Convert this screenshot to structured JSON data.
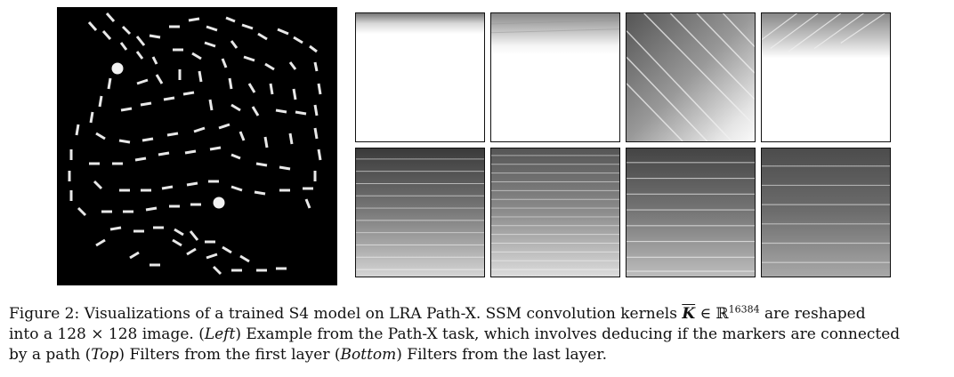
{
  "figure": {
    "left_panel": {
      "description_name": "path-x-example"
    },
    "kernel_grid": {
      "rows": 2,
      "cols": 4
    }
  },
  "caption": {
    "line1_pre": "Figure 2: Visualizations of a trained S4 model on LRA Path-X. SSM convolution kernels ",
    "kernel_symbol": "K",
    "in_symbol": " ∈ ℝ",
    "dim": "16384",
    "line1_post": " are reshaped",
    "line2_pre": "into a 128 × 128 image. (",
    "left_label": "Left",
    "line2_post": ") Example from the Path-X task, which involves deducing if the markers are connected",
    "line3_pre": "by a path (",
    "top_label": "Top",
    "line3_mid": ") Filters from the first layer (",
    "bottom_label": "Bottom",
    "line3_post": ") Filters from the last layer."
  }
}
